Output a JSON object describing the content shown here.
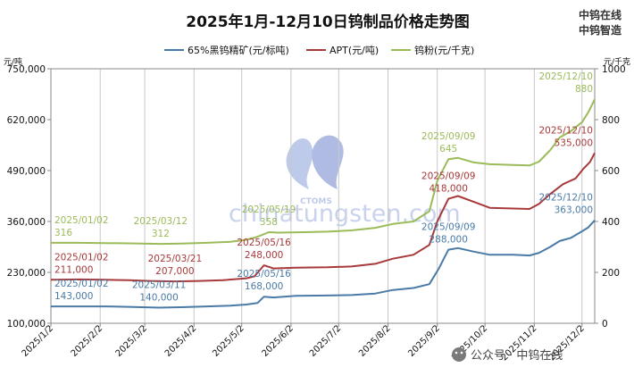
{
  "brand": {
    "line1": "中钨在线",
    "line2": "中钨智造",
    "watermark_text": "chinatungsten.com",
    "watermark_logo_text": "CTOMS",
    "wechat_label": "公众号 · 中钨在线"
  },
  "chart_data": {
    "type": "line",
    "title": "2025年1月-12月10日钨制品价格走势图",
    "left_unit": "元/吨",
    "right_unit": "元/千克",
    "y_left": {
      "min": 100000,
      "max": 750000,
      "ticks": [
        "100,000",
        "230,000",
        "360,000",
        "490,000",
        "620,000",
        "750,000"
      ],
      "tick_values": [
        100000,
        230000,
        360000,
        490000,
        620000,
        750000
      ]
    },
    "y_right": {
      "min": 0,
      "max": 1000,
      "ticks": [
        "0",
        "200",
        "400",
        "600",
        "800",
        "1000"
      ],
      "tick_values": [
        0,
        200,
        400,
        600,
        800,
        1000
      ]
    },
    "x_ticks": [
      "2025/1/2",
      "2025/2/2",
      "2025/3/2",
      "2025/4/2",
      "2025/5/2",
      "2025/6/2",
      "2025/7/2",
      "2025/8/2",
      "2025/9/2",
      "2025/10/2",
      "2025/11/2",
      "2025/12/2"
    ],
    "x_tick_days": [
      0,
      31,
      59,
      90,
      120,
      151,
      181,
      212,
      243,
      273,
      304,
      334
    ],
    "x_end_day": 342,
    "grid": "vertical",
    "legend_position": "top",
    "series": [
      {
        "name": "65%黑钨精矿(元/标吨)",
        "color": "#4a7aa6",
        "axis": "left",
        "points": [
          [
            "2025/01/02",
            143000
          ],
          [
            "2025/01/20",
            143000
          ],
          [
            "2025/02/05",
            143000
          ],
          [
            "2025/02/20",
            142000
          ],
          [
            "2025/03/11",
            140000
          ],
          [
            "2025/03/25",
            141000
          ],
          [
            "2025/04/10",
            143000
          ],
          [
            "2025/04/25",
            145000
          ],
          [
            "2025/05/05",
            148000
          ],
          [
            "2025/05/12",
            152000
          ],
          [
            "2025/05/16",
            168000
          ],
          [
            "2025/05/22",
            166000
          ],
          [
            "2025/06/05",
            170000
          ],
          [
            "2025/06/25",
            171000
          ],
          [
            "2025/07/10",
            172000
          ],
          [
            "2025/07/25",
            176000
          ],
          [
            "2025/08/05",
            185000
          ],
          [
            "2025/08/18",
            190000
          ],
          [
            "2025/08/28",
            200000
          ],
          [
            "2025/09/03",
            240000
          ],
          [
            "2025/09/09",
            288000
          ],
          [
            "2025/09/15",
            292000
          ],
          [
            "2025/09/25",
            283000
          ],
          [
            "2025/10/05",
            275000
          ],
          [
            "2025/10/20",
            275000
          ],
          [
            "2025/10/30",
            273000
          ],
          [
            "2025/11/05",
            280000
          ],
          [
            "2025/11/12",
            295000
          ],
          [
            "2025/11/18",
            310000
          ],
          [
            "2025/11/25",
            318000
          ],
          [
            "2025/12/02",
            335000
          ],
          [
            "2025/12/06",
            345000
          ],
          [
            "2025/12/10",
            363000
          ]
        ]
      },
      {
        "name": "APT(元/吨)",
        "color": "#a8393a",
        "axis": "left",
        "points": [
          [
            "2025/01/02",
            211000
          ],
          [
            "2025/01/20",
            212000
          ],
          [
            "2025/02/05",
            211000
          ],
          [
            "2025/02/20",
            210000
          ],
          [
            "2025/03/05",
            208000
          ],
          [
            "2025/03/21",
            207000
          ],
          [
            "2025/04/05",
            208000
          ],
          [
            "2025/04/20",
            210000
          ],
          [
            "2025/05/05",
            215000
          ],
          [
            "2025/05/10",
            220000
          ],
          [
            "2025/05/16",
            248000
          ],
          [
            "2025/05/22",
            240000
          ],
          [
            "2025/06/05",
            242000
          ],
          [
            "2025/06/25",
            243000
          ],
          [
            "2025/07/10",
            245000
          ],
          [
            "2025/07/25",
            252000
          ],
          [
            "2025/08/05",
            265000
          ],
          [
            "2025/08/18",
            275000
          ],
          [
            "2025/08/28",
            300000
          ],
          [
            "2025/09/02",
            360000
          ],
          [
            "2025/09/09",
            418000
          ],
          [
            "2025/09/15",
            425000
          ],
          [
            "2025/09/25",
            410000
          ],
          [
            "2025/10/05",
            395000
          ],
          [
            "2025/10/20",
            393000
          ],
          [
            "2025/10/30",
            392000
          ],
          [
            "2025/11/05",
            405000
          ],
          [
            "2025/11/12",
            430000
          ],
          [
            "2025/11/20",
            455000
          ],
          [
            "2025/11/28",
            470000
          ],
          [
            "2025/12/03",
            495000
          ],
          [
            "2025/12/07",
            512000
          ],
          [
            "2025/12/10",
            535000
          ]
        ]
      },
      {
        "name": "钨粉(元/千克)",
        "color": "#9bbb59",
        "axis": "right",
        "points": [
          [
            "2025/01/02",
            316
          ],
          [
            "2025/01/20",
            316
          ],
          [
            "2025/02/05",
            315
          ],
          [
            "2025/02/20",
            314
          ],
          [
            "2025/03/12",
            312
          ],
          [
            "2025/03/25",
            313
          ],
          [
            "2025/04/10",
            316
          ],
          [
            "2025/04/25",
            320
          ],
          [
            "2025/05/05",
            328
          ],
          [
            "2025/05/12",
            340
          ],
          [
            "2025/05/19",
            358
          ],
          [
            "2025/05/25",
            356
          ],
          [
            "2025/06/10",
            358
          ],
          [
            "2025/06/25",
            360
          ],
          [
            "2025/07/10",
            365
          ],
          [
            "2025/07/25",
            375
          ],
          [
            "2025/08/05",
            390
          ],
          [
            "2025/08/18",
            400
          ],
          [
            "2025/08/28",
            440
          ],
          [
            "2025/09/02",
            560
          ],
          [
            "2025/09/09",
            645
          ],
          [
            "2025/09/15",
            650
          ],
          [
            "2025/09/25",
            632
          ],
          [
            "2025/10/05",
            625
          ],
          [
            "2025/10/20",
            622
          ],
          [
            "2025/10/30",
            620
          ],
          [
            "2025/11/05",
            635
          ],
          [
            "2025/11/12",
            680
          ],
          [
            "2025/11/18",
            730
          ],
          [
            "2025/11/25",
            755
          ],
          [
            "2025/12/02",
            790
          ],
          [
            "2025/12/06",
            830
          ],
          [
            "2025/12/10",
            880
          ]
        ]
      }
    ],
    "annotations": [
      {
        "series": 2,
        "date": "2025/01/02",
        "date_label": "2025/01/02",
        "value_label": "316"
      },
      {
        "series": 2,
        "date": "2025/03/12",
        "date_label": "2025/03/12",
        "value_label": "312"
      },
      {
        "series": 2,
        "date": "2025/05/19",
        "date_label": "2025/05/19",
        "value_label": "358"
      },
      {
        "series": 2,
        "date": "2025/09/09",
        "date_label": "2025/09/09",
        "value_label": "645"
      },
      {
        "series": 2,
        "date": "2025/12/10",
        "date_label": "2025/12/10",
        "value_label": "880"
      },
      {
        "series": 1,
        "date": "2025/01/02",
        "date_label": "2025/01/02",
        "value_label": "211,000"
      },
      {
        "series": 1,
        "date": "2025/03/21",
        "date_label": "2025/03/21",
        "value_label": "207,000"
      },
      {
        "series": 1,
        "date": "2025/05/16",
        "date_label": "2025/05/16",
        "value_label": "248,000"
      },
      {
        "series": 1,
        "date": "2025/09/09",
        "date_label": "2025/09/09",
        "value_label": "418,000"
      },
      {
        "series": 1,
        "date": "2025/12/10",
        "date_label": "2025/12/10",
        "value_label": "535,000"
      },
      {
        "series": 0,
        "date": "2025/01/02",
        "date_label": "2025/01/02",
        "value_label": "143,000"
      },
      {
        "series": 0,
        "date": "2025/03/11",
        "date_label": "2025/03/11",
        "value_label": "140,000"
      },
      {
        "series": 0,
        "date": "2025/05/16",
        "date_label": "2025/05/16",
        "value_label": "168,000"
      },
      {
        "series": 0,
        "date": "2025/09/09",
        "date_label": "2025/09/09",
        "value_label": "288,000"
      },
      {
        "series": 0,
        "date": "2025/12/10",
        "date_label": "2025/12/10",
        "value_label": "363,000"
      }
    ]
  }
}
